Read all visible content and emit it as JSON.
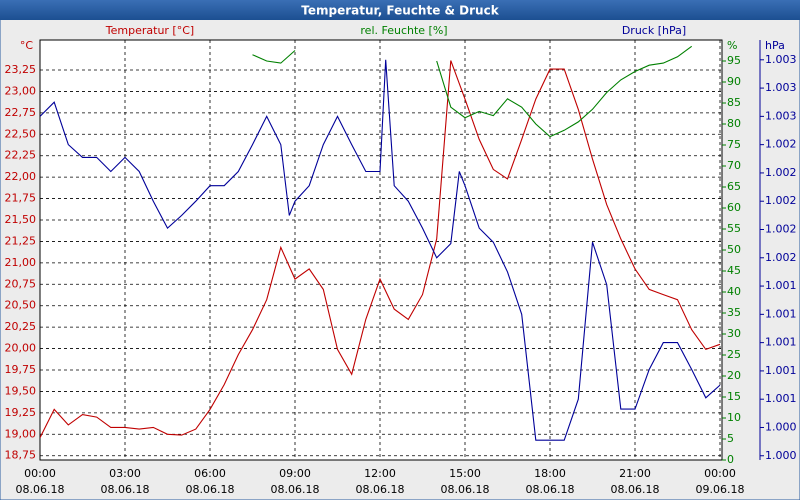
{
  "chart_data": {
    "type": "line",
    "title": "Temperatur, Feuchte & Druck",
    "xlim": [
      0,
      24
    ],
    "xticks": [
      {
        "value": 0,
        "label": "00:00"
      },
      {
        "value": 3,
        "label": "03:00"
      },
      {
        "value": 6,
        "label": "06:00"
      },
      {
        "value": 9,
        "label": "09:00"
      },
      {
        "value": 12,
        "label": "12:00"
      },
      {
        "value": 15,
        "label": "15:00"
      },
      {
        "value": 18,
        "label": "18:00"
      },
      {
        "value": 21,
        "label": "21:00"
      },
      {
        "value": 24,
        "label": "00:00"
      }
    ],
    "xtick_dates": [
      "08.06.18",
      "08.06.18",
      "08.06.18",
      "08.06.18",
      "08.06.18",
      "08.06.18",
      "08.06.18",
      "08.06.18",
      "09.06.18"
    ],
    "y_unit": "°C",
    "y2_unit": "%",
    "y3_unit": "hPa",
    "ylim": [
      18.7,
      23.6
    ],
    "yticks": [
      {
        "value": 18.75,
        "label": "18,75"
      },
      {
        "value": 19,
        "label": "19,00"
      },
      {
        "value": 19.25,
        "label": "19,25"
      },
      {
        "value": 19.5,
        "label": "19,50"
      },
      {
        "value": 19.75,
        "label": "19,75"
      },
      {
        "value": 20,
        "label": "20,00"
      },
      {
        "value": 20.25,
        "label": "20,25"
      },
      {
        "value": 20.5,
        "label": "20,50"
      },
      {
        "value": 20.75,
        "label": "20,75"
      },
      {
        "value": 21,
        "label": "21,00"
      },
      {
        "value": 21.25,
        "label": "21,25"
      },
      {
        "value": 21.5,
        "label": "21,50"
      },
      {
        "value": 21.75,
        "label": "21,75"
      },
      {
        "value": 22,
        "label": "22,00"
      },
      {
        "value": 22.25,
        "label": "22,25"
      },
      {
        "value": 22.5,
        "label": "22,50"
      },
      {
        "value": 22.75,
        "label": "22,75"
      },
      {
        "value": 23,
        "label": "23,00"
      },
      {
        "value": 23.25,
        "label": "23,25"
      }
    ],
    "y2lim": [
      0,
      100
    ],
    "y2ticks": [
      0,
      5,
      10,
      15,
      20,
      25,
      30,
      35,
      40,
      45,
      50,
      55,
      60,
      65,
      70,
      75,
      80,
      85,
      90,
      95
    ],
    "y3lim": [
      1000.07,
      1003.04
    ],
    "y3ticks": [
      {
        "value": 1000.1,
        "label": "1.000"
      },
      {
        "value": 1000.3,
        "label": "1.000"
      },
      {
        "value": 1000.5,
        "label": "1.001"
      },
      {
        "value": 1000.7,
        "label": "1.001"
      },
      {
        "value": 1000.9,
        "label": "1.001"
      },
      {
        "value": 1001.1,
        "label": "1.001"
      },
      {
        "value": 1001.3,
        "label": "1.001"
      },
      {
        "value": 1001.5,
        "label": "1.002"
      },
      {
        "value": 1001.7,
        "label": "1.002"
      },
      {
        "value": 1001.9,
        "label": "1.002"
      },
      {
        "value": 1002.1,
        "label": "1.002"
      },
      {
        "value": 1002.3,
        "label": "1.002"
      },
      {
        "value": 1002.5,
        "label": "1.003"
      },
      {
        "value": 1002.7,
        "label": "1.003"
      },
      {
        "value": 1002.9,
        "label": "1.003"
      }
    ],
    "grid": true,
    "series": [
      {
        "name": "Temperatur [°C]",
        "color": "#c00000",
        "axis": "y",
        "x": [
          0,
          0.5,
          1,
          1.5,
          2,
          2.5,
          3,
          3.5,
          4,
          4.5,
          5,
          5.5,
          6,
          6.5,
          7,
          7.5,
          8,
          8.5,
          9,
          9.5,
          10,
          10.5,
          11,
          11.5,
          12,
          12.5,
          13,
          13.5,
          14,
          14.5,
          15,
          15.5,
          16,
          16.5,
          17,
          17.5,
          18,
          18.5,
          19,
          19.5,
          20,
          20.5,
          21,
          21.5,
          22,
          22.5,
          23,
          23.5,
          24
        ],
        "values": [
          18.96,
          19.29,
          19.11,
          19.23,
          19.2,
          19.08,
          19.08,
          19.06,
          19.08,
          19.0,
          18.99,
          19.06,
          19.29,
          19.58,
          19.93,
          20.22,
          20.57,
          21.18,
          20.81,
          20.93,
          20.69,
          19.99,
          19.7,
          20.34,
          20.81,
          20.46,
          20.34,
          20.63,
          21.28,
          23.36,
          22.91,
          22.44,
          22.09,
          21.98,
          22.44,
          22.91,
          23.26,
          23.26,
          22.79,
          22.21,
          21.68,
          21.28,
          20.93,
          20.69,
          20.63,
          20.57,
          20.22,
          19.99,
          20.05
        ]
      },
      {
        "name": "rel. Feuchte [%]",
        "color": "#008000",
        "axis": "y2",
        "x": [
          7,
          7.5,
          8,
          8.5,
          9,
          9.5,
          13.5,
          14,
          14.5,
          15,
          15.5,
          16,
          16.5,
          17,
          17.5,
          18,
          18.5,
          19,
          19.5,
          20,
          20.5,
          21,
          21.5,
          22,
          22.5,
          23,
          23.5
        ],
        "values": [
          null,
          96.5,
          95,
          94.5,
          97.5,
          null,
          null,
          95,
          84,
          81.5,
          83,
          82,
          86,
          84,
          80,
          77,
          78.5,
          80.5,
          83.5,
          87.5,
          90.5,
          92.5,
          94,
          94.5,
          96,
          98.5,
          null
        ]
      },
      {
        "name": "Druck [hPa]",
        "color": "#000099",
        "axis": "y3",
        "x": [
          0,
          0.5,
          1,
          1.5,
          2,
          2.5,
          3,
          3.5,
          4,
          4.5,
          5,
          5.5,
          6,
          6.5,
          7,
          7.5,
          8,
          8.5,
          8.8,
          9,
          9.5,
          10,
          10.5,
          11,
          11.5,
          12,
          12.2,
          12.5,
          13,
          13.5,
          14,
          14.5,
          14.8,
          15,
          15.5,
          16,
          16.5,
          17,
          17.5,
          18,
          18.5,
          19,
          19.5,
          20,
          20.5,
          21,
          21.5,
          22,
          22.5,
          23,
          23.5,
          24
        ],
        "values": [
          1002.5,
          1002.6,
          1002.3,
          1002.21,
          1002.21,
          1002.11,
          1002.21,
          1002.11,
          1001.9,
          1001.71,
          1001.8,
          1001.9,
          1002.01,
          1002.01,
          1002.11,
          1002.3,
          1002.5,
          1002.3,
          1001.8,
          1001.9,
          1002.01,
          1002.3,
          1002.5,
          1002.3,
          1002.11,
          1002.11,
          1002.9,
          1002.01,
          1001.9,
          1001.71,
          1001.5,
          1001.6,
          1002.11,
          1002.01,
          1001.71,
          1001.61,
          1001.4,
          1001.1,
          1000.21,
          1000.21,
          1000.21,
          1000.5,
          1001.61,
          1001.31,
          1000.43,
          1000.43,
          1000.71,
          1000.9,
          1000.9,
          1000.71,
          1000.51,
          1000.6
        ]
      }
    ]
  }
}
